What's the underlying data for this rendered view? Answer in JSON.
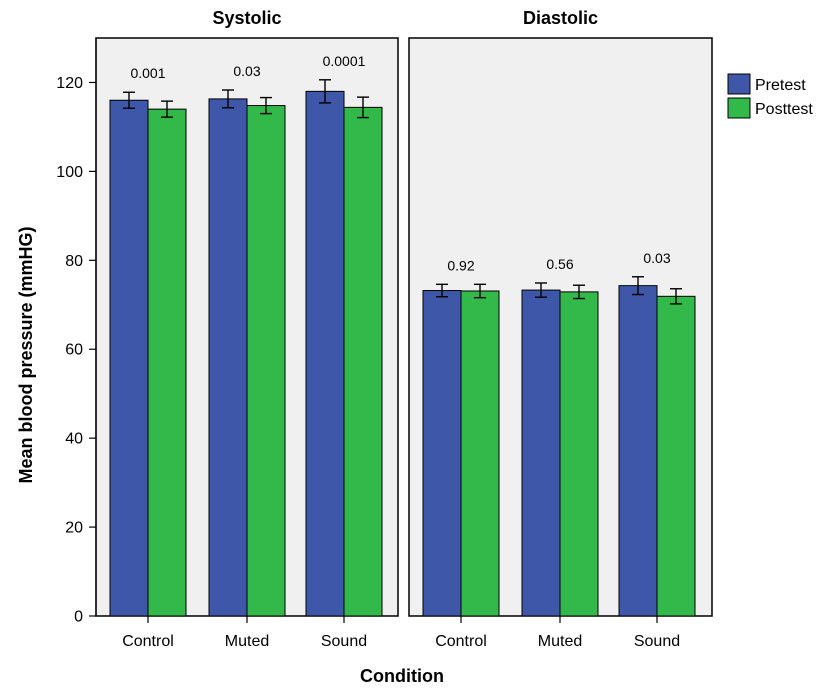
{
  "chart_data": {
    "type": "bar",
    "xlabel": "Condition",
    "ylabel": "Mean blood pressure (mmHG)",
    "ylim": [
      0,
      130
    ],
    "yticks": [
      0,
      20,
      40,
      60,
      80,
      100,
      120
    ],
    "categories": [
      "Control",
      "Muted",
      "Sound"
    ],
    "legend": {
      "placement": "right",
      "entries": [
        {
          "name": "Pretest",
          "color": "#3f57a8"
        },
        {
          "name": "Posttest",
          "color": "#33b84a"
        }
      ]
    },
    "panels": [
      {
        "title": "Systolic",
        "series": [
          {
            "name": "Pretest",
            "values": [
              116.0,
              116.3,
              118.0
            ],
            "error": [
              1.8,
              2.0,
              2.6
            ]
          },
          {
            "name": "Posttest",
            "values": [
              114.0,
              114.8,
              114.4
            ],
            "error": [
              1.8,
              1.8,
              2.3
            ]
          }
        ],
        "p_values": [
          "0.001",
          "0.03",
          "0.0001"
        ]
      },
      {
        "title": "Diastolic",
        "series": [
          {
            "name": "Pretest",
            "values": [
              73.2,
              73.3,
              74.3
            ],
            "error": [
              1.4,
              1.6,
              2.0
            ]
          },
          {
            "name": "Posttest",
            "values": [
              73.1,
              72.9,
              71.9
            ],
            "error": [
              1.5,
              1.5,
              1.7
            ]
          }
        ],
        "p_values": [
          "0.92",
          "0.56",
          "0.03"
        ]
      }
    ]
  }
}
